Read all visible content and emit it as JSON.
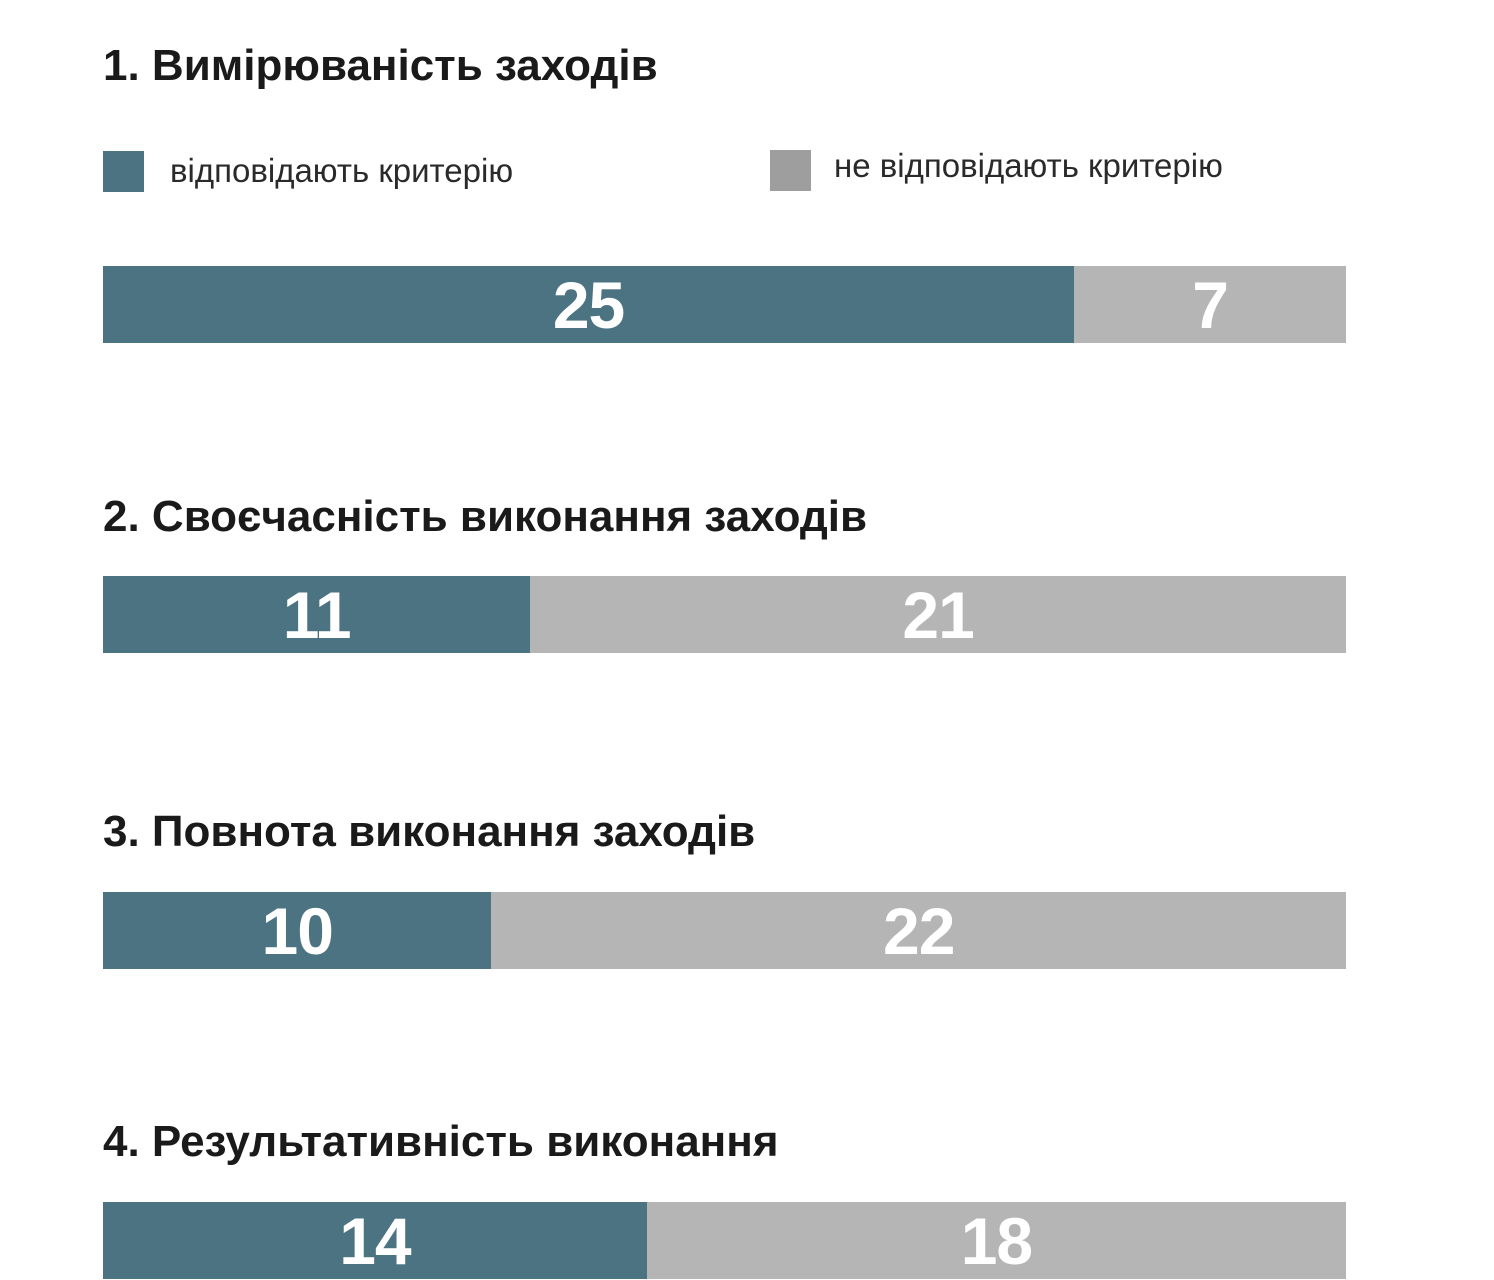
{
  "colors": {
    "meets": "#4b7381",
    "not_meets": "#b5b5b5",
    "legend_not_meets": "#9e9e9e"
  },
  "legend": {
    "meets_label": "відповідають критерію",
    "not_meets_label": "не відповідають критерію"
  },
  "chart_data": [
    {
      "type": "bar",
      "stacked": true,
      "orientation": "horizontal",
      "title": "1. Вимірюваність заходів",
      "series": [
        {
          "name": "відповідають критерію",
          "values": [
            25
          ]
        },
        {
          "name": "не відповідають критерію",
          "values": [
            7
          ]
        }
      ]
    },
    {
      "type": "bar",
      "stacked": true,
      "orientation": "horizontal",
      "title": "2. Своєчасність виконання заходів",
      "series": [
        {
          "name": "відповідають критерію",
          "values": [
            11
          ]
        },
        {
          "name": "не відповідають критерію",
          "values": [
            21
          ]
        }
      ]
    },
    {
      "type": "bar",
      "stacked": true,
      "orientation": "horizontal",
      "title": "3. Повнота виконання заходів",
      "series": [
        {
          "name": "відповідають критерію",
          "values": [
            10
          ]
        },
        {
          "name": "не відповідають критерію",
          "values": [
            22
          ]
        }
      ]
    },
    {
      "type": "bar",
      "stacked": true,
      "orientation": "horizontal",
      "title": "4. Результативність виконання",
      "series": [
        {
          "name": "відповідають критерію",
          "values": [
            14
          ]
        },
        {
          "name": "не відповідають критерію",
          "values": [
            18
          ]
        }
      ]
    }
  ]
}
